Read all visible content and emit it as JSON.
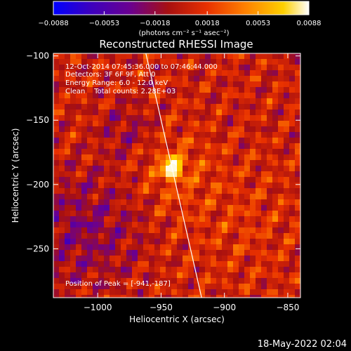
{
  "chart_data": {
    "type": "heatmap",
    "title": "Reconstructed RHESSI Image",
    "xlabel": "Heliocentric X (arcsec)",
    "ylabel": "Heliocentric Y (arcsec)",
    "xlim": [
      -1035,
      -840
    ],
    "ylim": [
      -288,
      -98
    ],
    "x_ticks": [
      {
        "value": -1000,
        "label": "−1000"
      },
      {
        "value": -950,
        "label": "−950"
      },
      {
        "value": -900,
        "label": "−900"
      },
      {
        "value": -850,
        "label": "−850"
      }
    ],
    "y_ticks": [
      {
        "value": -100,
        "label": "−100"
      },
      {
        "value": -150,
        "label": "−150"
      },
      {
        "value": -200,
        "label": "−200"
      },
      {
        "value": -250,
        "label": "−250"
      }
    ],
    "annotations": [
      "12-Oct-2014 07:45:36.000 to 07:46:44.000",
      "Detectors: 3F 6F 9F, Att 0",
      "Energy Range: 6.0 - 12.0 keV",
      "Clean    Total counts: 2.28E+03"
    ],
    "peak_label": "Position of Peak = [-941,-187]",
    "peak": {
      "x": -941,
      "y": -187
    },
    "limb_line": [
      {
        "x": -962,
        "y": -98
      },
      {
        "x": -918,
        "y": -288
      }
    ],
    "colorbar": {
      "min": -0.0088,
      "max": 0.0088,
      "ticks": [
        {
          "value": -0.0088,
          "label": "−0.0088"
        },
        {
          "value": -0.0053,
          "label": "−0.0053"
        },
        {
          "value": -0.0018,
          "label": "−0.0018"
        },
        {
          "value": 0.0018,
          "label": "0.0018"
        },
        {
          "value": 0.0053,
          "label": "0.0053"
        },
        {
          "value": 0.0088,
          "label": "0.0088"
        }
      ],
      "unit_label": "(photons cm⁻² s⁻¹ asec⁻²)",
      "colors": [
        "#0000ff",
        "#3a00c0",
        "#6a0090",
        "#a81010",
        "#e83000",
        "#ff8000",
        "#ffd000",
        "#ffffff"
      ]
    },
    "grid": false
  },
  "footer": {
    "timestamp": "18-May-2022 02:04"
  }
}
